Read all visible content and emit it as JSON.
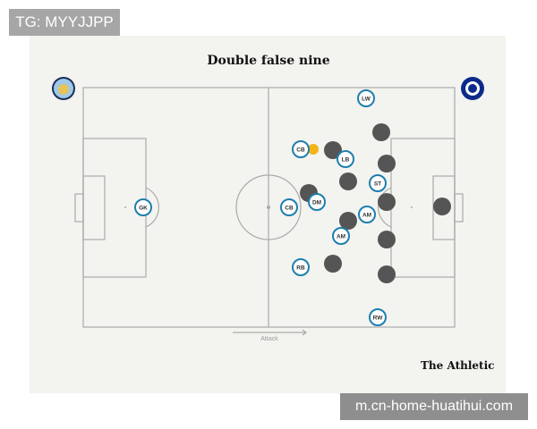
{
  "watermark_top": "TG: MYYJJPP",
  "watermark_bottom": "m.cn-home-huatihui.com",
  "title": "Double false nine",
  "brand": "The Athletic",
  "attack_label": "Attack",
  "colors": {
    "player_ring": "#1e7fae",
    "opponent": "#555555",
    "ball": "#f2b417",
    "lines": "#aaaaaa"
  },
  "home_badge": "manchester-city-badge",
  "away_badge": "chelsea-badge",
  "players": [
    {
      "label": "GK"
    },
    {
      "label": "LW"
    },
    {
      "label": "CB"
    },
    {
      "label": "LB"
    },
    {
      "label": "ST"
    },
    {
      "label": "DM"
    },
    {
      "label": "CB"
    },
    {
      "label": "AM"
    },
    {
      "label": "AM"
    },
    {
      "label": "RB"
    },
    {
      "label": "RW"
    }
  ]
}
